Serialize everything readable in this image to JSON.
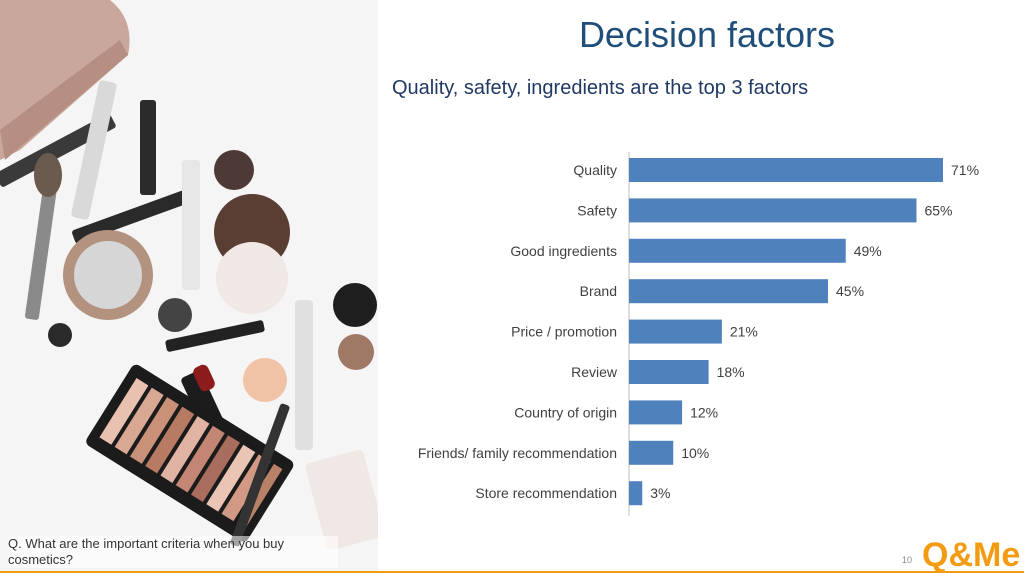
{
  "slide": {
    "title": "Decision factors",
    "subtitle": "Quality, safety, ingredients are the top 3 factors",
    "question": "Q. What are the important criteria when you buy cosmetics?",
    "page_number": "10",
    "logo_text": "Q&Me"
  },
  "colors": {
    "bar": "#4f81bd",
    "title": "#1f4e79",
    "accent": "#f39c12"
  },
  "chart_data": {
    "type": "bar",
    "orientation": "horizontal",
    "categories": [
      "Quality",
      "Safety",
      "Good ingredients",
      "Brand",
      "Price / promotion",
      "Review",
      "Country of origin",
      "Friends/ family recommendation",
      "Store recommendation"
    ],
    "values": [
      71,
      65,
      49,
      45,
      21,
      18,
      12,
      10,
      3
    ],
    "value_labels": [
      "71%",
      "65%",
      "49%",
      "45%",
      "21%",
      "18%",
      "12%",
      "10%",
      "3%"
    ],
    "unit": "%",
    "xlim": [
      0,
      71
    ],
    "grid": false,
    "legend": "none"
  }
}
